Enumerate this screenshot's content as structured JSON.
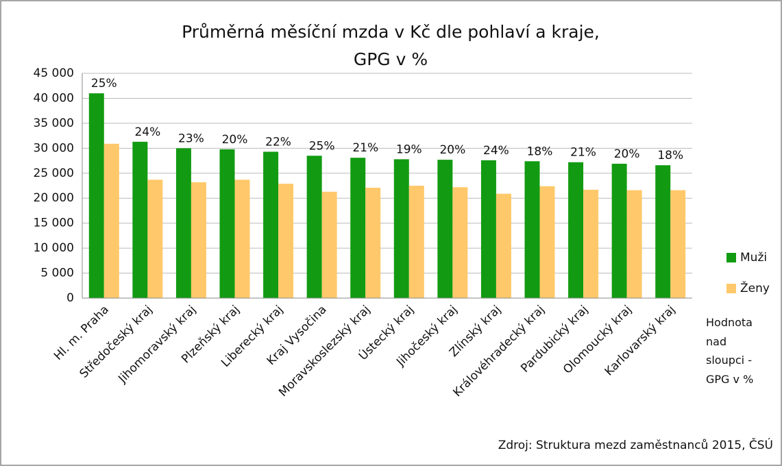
{
  "chart_data": {
    "type": "bar",
    "title": [
      "Průměrná měsíční mzda v Kč dle pohlaví a kraje,",
      "GPG v %"
    ],
    "categories": [
      "Hl. m. Praha",
      "Středočeský kraj",
      "Jihomoravský kraj",
      "Plzeňský kraj",
      "Liberecký kraj",
      "Kraj Vysočina",
      "Moravskoslezský kraj",
      "Ústecký kraj",
      "Jihočeský kraj",
      "Zlínský kraj",
      "Královéhradecký kraj",
      "Pardubický kraj",
      "Olomoucký kraj",
      "Karlovarský kraj"
    ],
    "series": [
      {
        "name": "Muži",
        "color": "#129b12",
        "values": [
          41000,
          31300,
          30000,
          29800,
          29300,
          28500,
          28100,
          27800,
          27700,
          27600,
          27400,
          27200,
          26900,
          26600
        ]
      },
      {
        "name": "Ženy",
        "color": "#ffc96b",
        "values": [
          30900,
          23700,
          23200,
          23700,
          22900,
          21300,
          22100,
          22500,
          22200,
          20900,
          22400,
          21700,
          21600,
          21600
        ]
      }
    ],
    "gpg_labels": [
      "25%",
      "24%",
      "23%",
      "20%",
      "22%",
      "25%",
      "21%",
      "19%",
      "20%",
      "24%",
      "18%",
      "21%",
      "20%",
      "18%"
    ],
    "ylim": [
      0,
      45000
    ],
    "yticks": [
      0,
      {
        "value": 5000,
        "label": "5 000"
      },
      {
        "value": 10000,
        "label": "10 000"
      },
      {
        "value": 15000,
        "label": "15 000"
      },
      {
        "value": 20000,
        "label": "20 000"
      },
      {
        "value": 25000,
        "label": "25 000"
      },
      {
        "value": 30000,
        "label": "30 000"
      },
      {
        "value": 35000,
        "label": "35 000"
      },
      {
        "value": 40000,
        "label": "40 000"
      },
      {
        "value": 45000,
        "label": "45 000"
      }
    ],
    "grid": true,
    "legend": "right",
    "note": "Hodnota nad sloupci - GPG v %",
    "source": "Zdroj: Struktura mezd zaměstnanců 2015, ČSÚ"
  }
}
